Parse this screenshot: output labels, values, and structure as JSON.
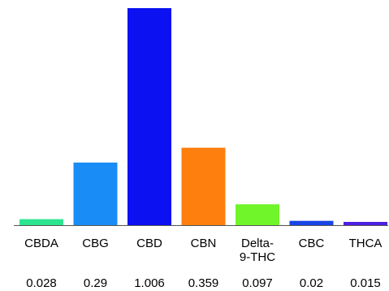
{
  "chart_data": {
    "type": "bar",
    "categories": [
      "CBDA",
      "CBG",
      "CBD",
      "CBN",
      "Delta-9-THC",
      "CBC",
      "THCA"
    ],
    "category_label_lines": [
      [
        "CBDA"
      ],
      [
        "CBG"
      ],
      [
        "CBD"
      ],
      [
        "CBN"
      ],
      [
        "Delta-",
        "9-THC"
      ],
      [
        "CBC"
      ],
      [
        "THCA"
      ]
    ],
    "values": [
      0.028,
      0.29,
      1.006,
      0.359,
      0.097,
      0.02,
      0.015
    ],
    "value_labels": [
      "0.028",
      "0.29",
      "1.006",
      "0.359",
      "0.097",
      "0.02",
      "0.015"
    ],
    "colors": [
      "#2ee58f",
      "#1a8cf5",
      "#0b11f0",
      "#ff7f0e",
      "#6ff52a",
      "#1745e6",
      "#4d1ee3"
    ],
    "ylim": [
      0,
      1.006
    ],
    "title": "",
    "xlabel": "",
    "ylabel": "",
    "grid": false,
    "legend": "none",
    "baseline_color": "#555555"
  }
}
